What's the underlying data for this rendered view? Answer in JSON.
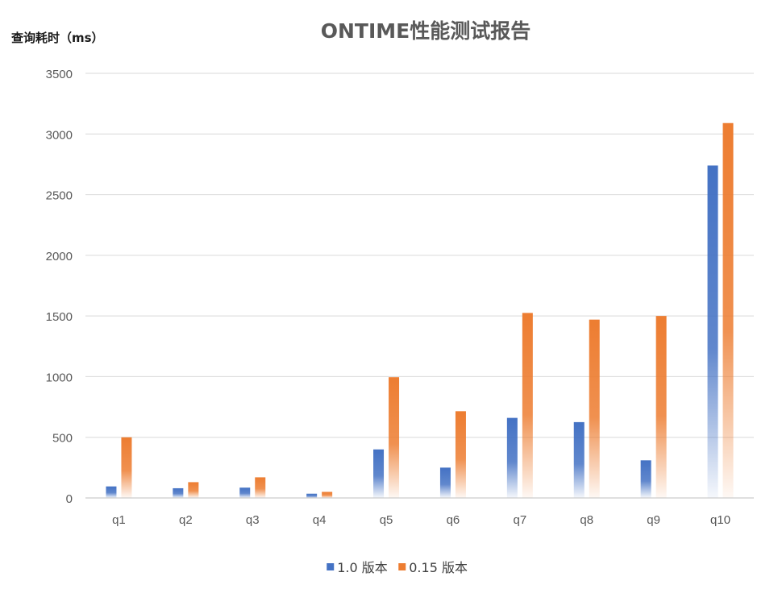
{
  "chart_data": {
    "type": "bar",
    "title": "ONTIME性能测试报告",
    "ylabel": "查询耗时（ms）",
    "xlabel": "",
    "ylim": [
      0,
      3500
    ],
    "yticks": [
      0,
      500,
      1000,
      1500,
      2000,
      2500,
      3000,
      3500
    ],
    "grid": true,
    "legend_position": "bottom",
    "categories": [
      "q1",
      "q2",
      "q3",
      "q4",
      "q5",
      "q6",
      "q7",
      "q8",
      "q9",
      "q10"
    ],
    "series": [
      {
        "name": "1.0 版本",
        "color": "#4472C4",
        "values": [
          95,
          80,
          85,
          35,
          400,
          250,
          660,
          625,
          310,
          2740
        ]
      },
      {
        "name": "0.15 版本",
        "color": "#ED7D31",
        "values": [
          500,
          130,
          170,
          50,
          995,
          715,
          1525,
          1470,
          1500,
          3090
        ]
      }
    ]
  }
}
